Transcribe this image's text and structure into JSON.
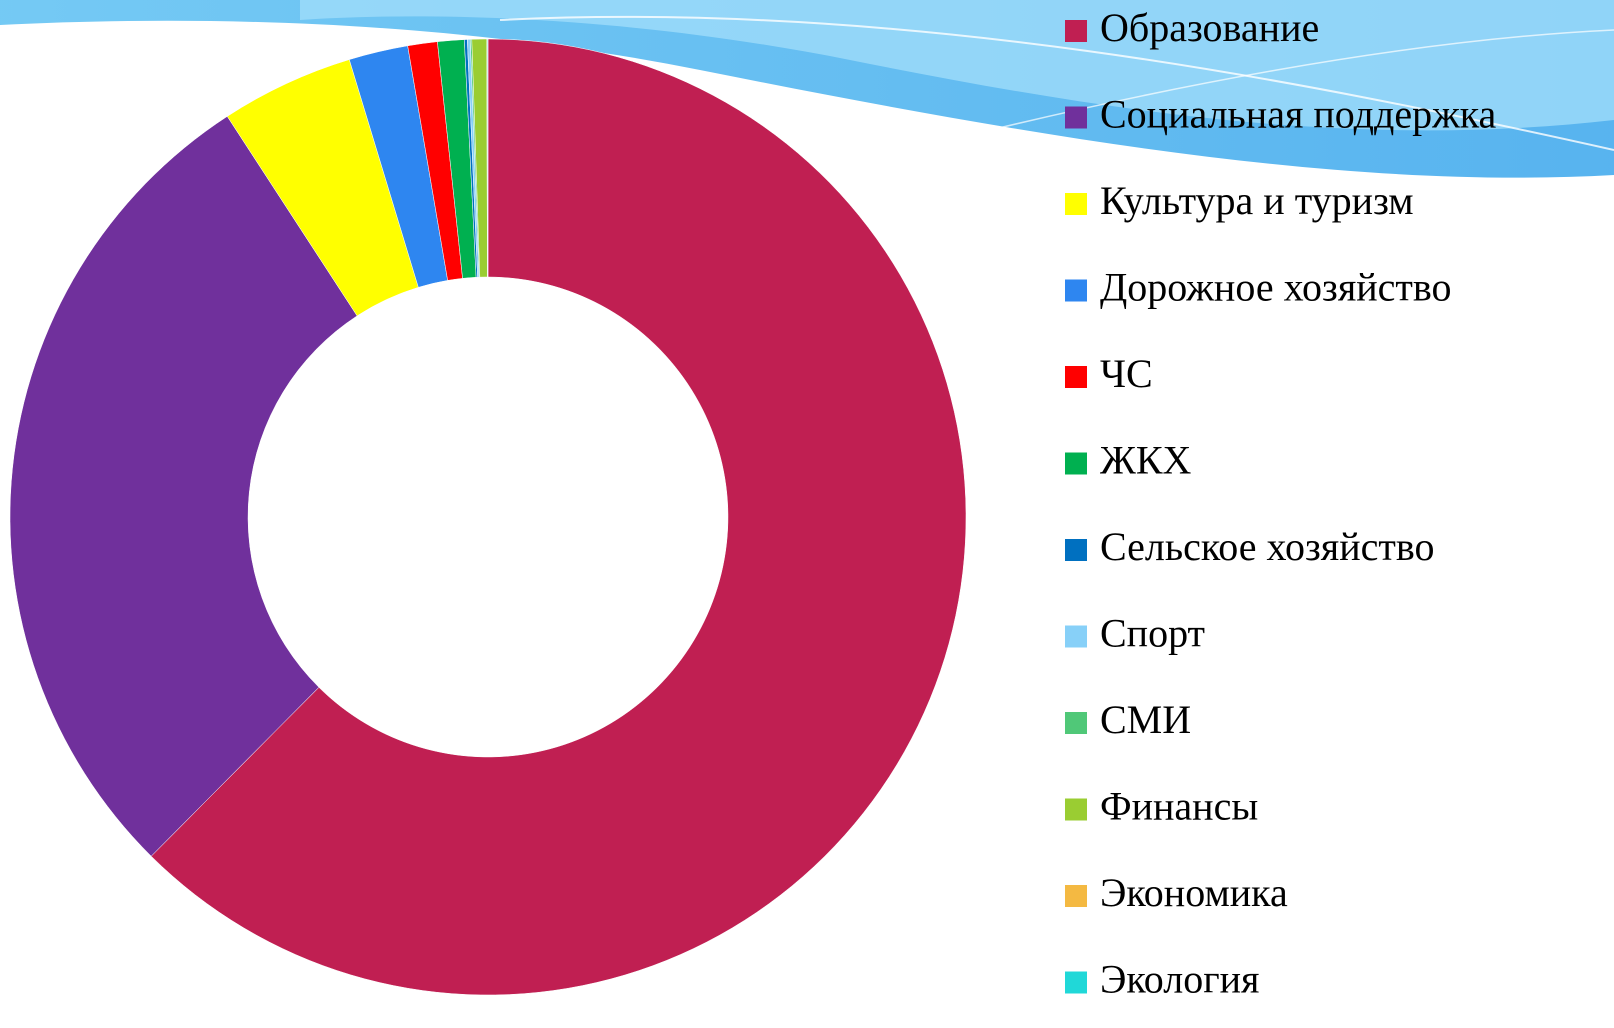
{
  "chart_data": {
    "type": "donut",
    "categories": [
      "Образование",
      "Социальная поддержка",
      "Культура и туризм",
      "Дорожное хозяйство",
      "ЧС",
      "ЖКХ",
      "Сельское хозяйство",
      "Спорт",
      "СМИ",
      "Финансы",
      "Экономика",
      "Экология"
    ],
    "values": [
      62.5,
      28.4,
      4.5,
      2.0,
      1.0,
      0.9,
      0.1,
      0.1,
      0.05,
      0.5,
      0.02,
      0.02
    ],
    "colors": [
      "#c01f52",
      "#70309c",
      "#ffff00",
      "#2e86f0",
      "#ff0000",
      "#00b050",
      "#0070c0",
      "#87d0f8",
      "#50c878",
      "#9acd32",
      "#f4b942",
      "#20d8d8"
    ],
    "legend": "right"
  }
}
